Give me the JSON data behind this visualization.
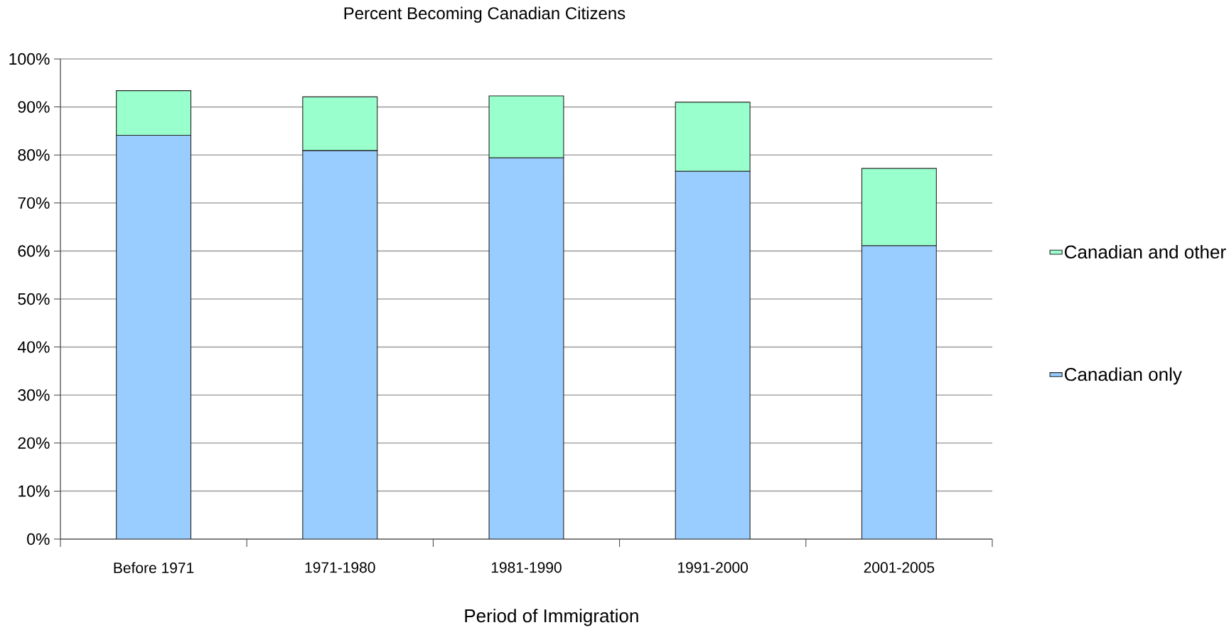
{
  "chart_data": {
    "type": "bar",
    "stacked": true,
    "title": "Percent Becoming Canadian Citizens",
    "xlabel": "Period of Immigration",
    "categories": [
      "Before 1971",
      "1971-1980",
      "1981-1990",
      "1991-2000",
      "2001-2005"
    ],
    "series": [
      {
        "name": "Canadian only",
        "color": "#99ccff",
        "values": [
          84.1,
          80.9,
          79.4,
          76.6,
          61.1
        ]
      },
      {
        "name": "Canadian and other",
        "color": "#99ffcc",
        "values": [
          9.3,
          11.2,
          12.9,
          14.4,
          16.1
        ]
      }
    ],
    "ylim": [
      0,
      100
    ],
    "yticks": [
      {
        "value": 0,
        "label": "0%"
      },
      {
        "value": 10,
        "label": "10%"
      },
      {
        "value": 20,
        "label": "20%"
      },
      {
        "value": 30,
        "label": "30%"
      },
      {
        "value": 40,
        "label": "40%"
      },
      {
        "value": 50,
        "label": "50%"
      },
      {
        "value": 60,
        "label": "60%"
      },
      {
        "value": 70,
        "label": "70%"
      },
      {
        "value": 80,
        "label": "80%"
      },
      {
        "value": 90,
        "label": "90%"
      },
      {
        "value": 100,
        "label": "100%"
      }
    ],
    "grid": "y",
    "legend": "right"
  }
}
